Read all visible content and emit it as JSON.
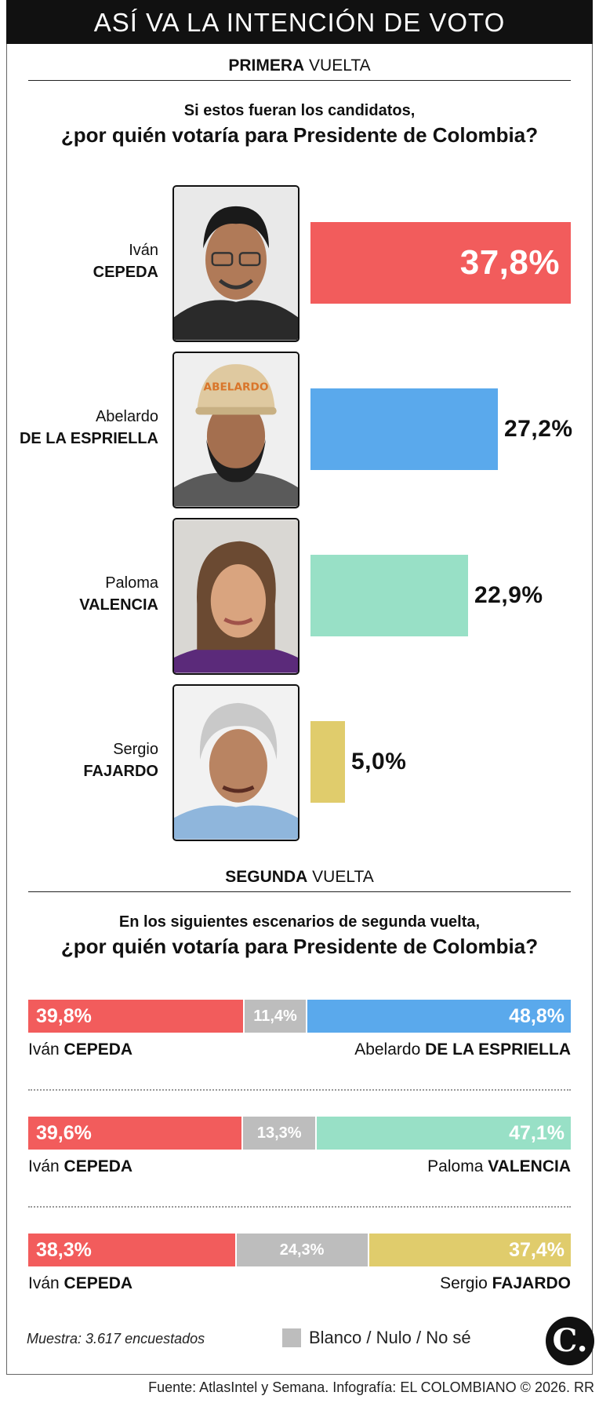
{
  "header": {
    "title": "ASÍ VA LA INTENCIÓN DE VOTO"
  },
  "first_round": {
    "heading_bold": "PRIMERA",
    "heading_rest": "VUELTA",
    "question_line1": "Si estos fueran los candidatos,",
    "question_line2": "¿por quién votaría para Presidente de Colombia?"
  },
  "second_round": {
    "heading_bold": "SEGUNDA",
    "heading_rest": "VUELTA",
    "question_line1": "En los siguientes escenarios de segunda vuelta,",
    "question_line2": "¿por quién votaría para Presidente de Colombia?"
  },
  "chart_data": [
    {
      "type": "bar",
      "categories": [
        "Iván CEPEDA",
        "Abelardo DE LA ESPRIELLA",
        "Paloma VALENCIA",
        "Sergio FAJARDO"
      ],
      "values": [
        37.8,
        27.2,
        22.9,
        5.0
      ],
      "value_labels": [
        "37,8%",
        "27,2%",
        "22,9%",
        "5,0%"
      ],
      "first_names": [
        "Iván",
        "Abelardo",
        "Paloma",
        "Sergio"
      ],
      "last_names": [
        "CEPEDA",
        "DE LA ESPRIELLA",
        "VALENCIA",
        "FAJARDO"
      ],
      "colors": [
        "#f25c5c",
        "#5aa9ec",
        "#98e0c6",
        "#e0cc6c"
      ],
      "xlim": [
        0,
        37.8
      ]
    },
    {
      "type": "bar",
      "stacked": true,
      "scenarios": [
        {
          "left": {
            "first": "Iván",
            "last": "CEPEDA",
            "value": 39.8,
            "label": "39,8%",
            "color": "#f25c5c"
          },
          "blank": {
            "value": 11.4,
            "label": "11,4%"
          },
          "right": {
            "first": "Abelardo",
            "last": "DE LA ESPRIELLA",
            "value": 48.8,
            "label": "48,8%",
            "color": "#5aa9ec"
          }
        },
        {
          "left": {
            "first": "Iván",
            "last": "CEPEDA",
            "value": 39.6,
            "label": "39,6%",
            "color": "#f25c5c"
          },
          "blank": {
            "value": 13.3,
            "label": "13,3%"
          },
          "right": {
            "first": "Paloma",
            "last": "VALENCIA",
            "value": 47.1,
            "label": "47,1%",
            "color": "#98e0c6"
          }
        },
        {
          "left": {
            "first": "Iván",
            "last": "CEPEDA",
            "value": 38.3,
            "label": "38,3%",
            "color": "#f25c5c"
          },
          "blank": {
            "value": 24.3,
            "label": "24,3%"
          },
          "right": {
            "first": "Sergio",
            "last": "FAJARDO",
            "value": 37.4,
            "label": "37,4%",
            "color": "#e0cc6c"
          }
        }
      ],
      "blank_color": "#bdbdbd"
    }
  ],
  "footer": {
    "sample": "Muestra: 3.617 encuestados",
    "legend_label": "Blanco / Nulo / No sé",
    "logo": "C.",
    "source": "Fuente: AtlasIntel y Semana. Infografía: EL COLOMBIANO © 2026. RR"
  },
  "icons": {
    "logo": "el-colombiano-logo-icon"
  }
}
